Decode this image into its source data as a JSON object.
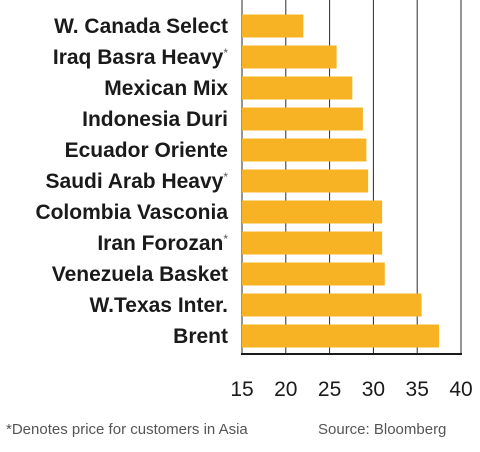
{
  "chart_data": {
    "type": "bar",
    "orientation": "horizontal",
    "categories": [
      "W. Canada Select",
      "Iraq Basra Heavy",
      "Mexican Mix",
      "Indonesia Duri",
      "Ecuador Oriente",
      "Saudi Arab Heavy",
      "Colombia Vasconia",
      "Iran Forozan",
      "Venezuela Basket",
      "W.Texas Inter.",
      "Brent"
    ],
    "asterisk": [
      false,
      true,
      false,
      false,
      false,
      true,
      false,
      true,
      false,
      false,
      false
    ],
    "asterisk_mark": "*",
    "values": [
      22.0,
      25.8,
      27.6,
      28.8,
      29.2,
      29.4,
      31.0,
      31.0,
      31.3,
      35.5,
      37.5
    ],
    "xlim": [
      15,
      40
    ],
    "xticks": [
      15,
      20,
      25,
      30,
      35,
      40
    ],
    "xtick_labels": [
      "15",
      "20",
      "25",
      "30",
      "35",
      "40"
    ],
    "grid": true,
    "bar_color": "#f7b323",
    "grid_color": "#2b2b2b",
    "title": "",
    "xlabel": "",
    "ylabel": ""
  },
  "footnote": "*Denotes price for customers in Asia",
  "source": "Source: Bloomberg"
}
